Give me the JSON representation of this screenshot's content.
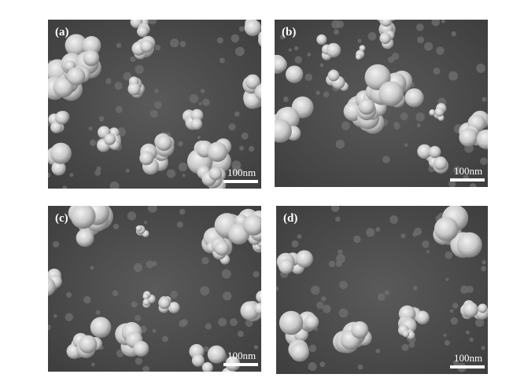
{
  "panels": [
    {
      "label": "(a)",
      "scale_bar": "100nm"
    },
    {
      "label": "(b)",
      "scale_bar": "100nm"
    },
    {
      "label": "(c)",
      "scale_bar": "100nm"
    },
    {
      "label": "(d)",
      "scale_bar": "100nm"
    }
  ]
}
